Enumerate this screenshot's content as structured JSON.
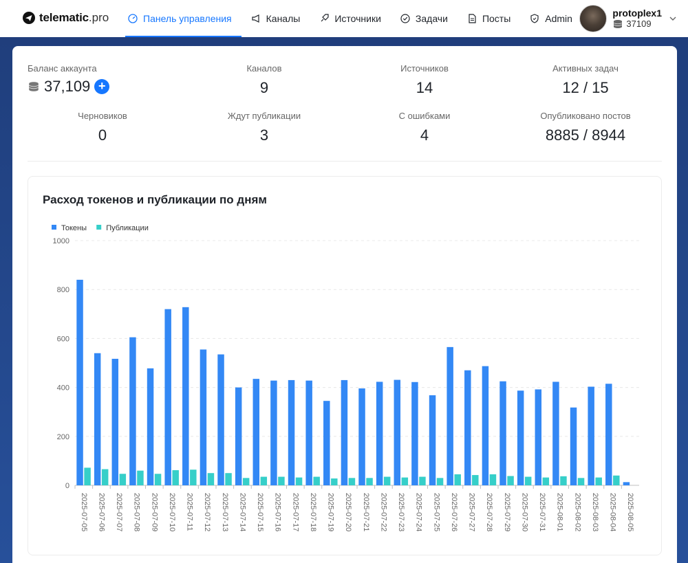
{
  "header": {
    "logo_bold": "telematic",
    "logo_light": ".pro",
    "nav": [
      {
        "label": "Панель управления",
        "icon": "dashboard-icon",
        "active": true
      },
      {
        "label": "Каналы",
        "icon": "megaphone-icon"
      },
      {
        "label": "Источники",
        "icon": "rocket-icon"
      },
      {
        "label": "Задачи",
        "icon": "check-circle-icon"
      },
      {
        "label": "Посты",
        "icon": "file-icon"
      },
      {
        "label": "Admin",
        "icon": "shield-icon"
      }
    ],
    "user": {
      "name": "protoplex1",
      "balance": "37109"
    }
  },
  "stats": {
    "balance": {
      "label": "Баланс аккаунта",
      "value": "37,109"
    },
    "channels": {
      "label": "Каналов",
      "value": "9"
    },
    "sources": {
      "label": "Источников",
      "value": "14"
    },
    "active_tasks": {
      "label": "Активных задач",
      "value": "12 / 15"
    },
    "drafts": {
      "label": "Черновиков",
      "value": "0"
    },
    "waiting": {
      "label": "Ждут публикации",
      "value": "3"
    },
    "errors": {
      "label": "С ошибками",
      "value": "4"
    },
    "published": {
      "label": "Опубликовано постов",
      "value": "8885 / 8944"
    }
  },
  "colors": {
    "accent": "#1677ff",
    "tokens": "#3388f5",
    "posts": "#36cfc9"
  },
  "chart_data": {
    "type": "bar",
    "title": "Расход токенов и публикации по дням",
    "categories": [
      "2025-07-05",
      "2025-07-06",
      "2025-07-07",
      "2025-07-08",
      "2025-07-09",
      "2025-07-10",
      "2025-07-11",
      "2025-07-12",
      "2025-07-13",
      "2025-07-14",
      "2025-07-15",
      "2025-07-16",
      "2025-07-17",
      "2025-07-18",
      "2025-07-19",
      "2025-07-20",
      "2025-07-21",
      "2025-07-22",
      "2025-07-23",
      "2025-07-24",
      "2025-07-25",
      "2025-07-26",
      "2025-07-27",
      "2025-07-28",
      "2025-07-29",
      "2025-07-30",
      "2025-07-31",
      "2025-08-01",
      "2025-08-02",
      "2025-08-03",
      "2025-08-04",
      "2025-08-05"
    ],
    "series": [
      {
        "name": "Токены",
        "values": [
          840,
          540,
          517,
          605,
          478,
          720,
          728,
          555,
          535,
          400,
          435,
          428,
          430,
          428,
          345,
          430,
          396,
          423,
          431,
          422,
          368,
          565,
          470,
          487,
          425,
          387,
          392,
          423,
          318,
          403,
          415,
          13
        ]
      },
      {
        "name": "Публикации",
        "values": [
          72,
          66,
          47,
          60,
          47,
          62,
          64,
          50,
          50,
          30,
          35,
          35,
          32,
          35,
          28,
          30,
          30,
          35,
          32,
          35,
          30,
          45,
          42,
          45,
          38,
          35,
          32,
          37,
          30,
          32,
          40,
          0
        ]
      }
    ],
    "ylim": [
      0,
      1000
    ],
    "yticks": [
      0,
      200,
      400,
      600,
      800,
      1000
    ],
    "legend": "top-left",
    "grid": true
  }
}
